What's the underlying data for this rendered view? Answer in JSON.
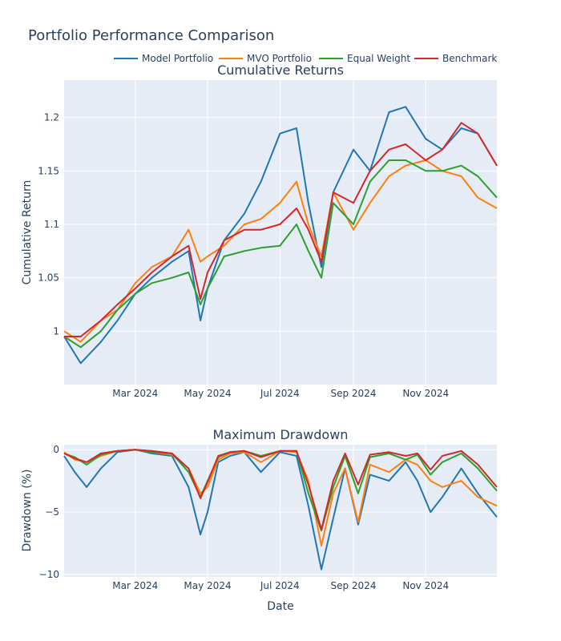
{
  "title": "Portfolio Performance Comparison",
  "chart_data": [
    {
      "type": "line",
      "title": "Cumulative Returns",
      "xlabel": "",
      "ylabel": "Cumulative Return",
      "xlim": [
        "2024-01-01",
        "2024-12-31"
      ],
      "ylim": [
        0.95,
        1.235
      ],
      "yticks": [
        1,
        1.05,
        1.1,
        1.15,
        1.2
      ],
      "ytick_labels": [
        "1",
        "1.05",
        "1.1",
        "1.15",
        "1.2"
      ],
      "xticks": [
        "2024-03-01",
        "2024-05-01",
        "2024-07-01",
        "2024-09-01",
        "2024-11-01"
      ],
      "xtick_labels": [
        "Mar 2024",
        "May 2024",
        "Jul 2024",
        "Sep 2024",
        "Nov 2024"
      ],
      "x": [
        "2024-01-01",
        "2024-01-15",
        "2024-02-01",
        "2024-02-15",
        "2024-03-01",
        "2024-03-15",
        "2024-04-01",
        "2024-04-15",
        "2024-04-25",
        "2024-05-01",
        "2024-05-15",
        "2024-06-01",
        "2024-06-15",
        "2024-07-01",
        "2024-07-15",
        "2024-07-25",
        "2024-08-05",
        "2024-08-15",
        "2024-09-01",
        "2024-09-15",
        "2024-10-01",
        "2024-10-15",
        "2024-11-01",
        "2024-11-15",
        "2024-12-01",
        "2024-12-15",
        "2024-12-31"
      ],
      "series": [
        {
          "name": "Model Portfolio",
          "color": "#1f77b4",
          "values": [
            0.995,
            0.97,
            0.99,
            1.01,
            1.035,
            1.05,
            1.065,
            1.075,
            1.01,
            1.04,
            1.085,
            1.11,
            1.14,
            1.185,
            1.19,
            1.12,
            1.06,
            1.13,
            1.17,
            1.15,
            1.205,
            1.21,
            1.18,
            1.17,
            1.19,
            1.185,
            1.155
          ]
        },
        {
          "name": "MVO Portfolio",
          "color": "#ff7f0e",
          "values": [
            1.0,
            0.99,
            1.01,
            1.02,
            1.045,
            1.06,
            1.07,
            1.095,
            1.065,
            1.07,
            1.08,
            1.1,
            1.105,
            1.12,
            1.14,
            1.1,
            1.07,
            1.13,
            1.095,
            1.12,
            1.145,
            1.155,
            1.16,
            1.15,
            1.145,
            1.125,
            1.115
          ]
        },
        {
          "name": "Equal Weight",
          "color": "#2ca02c",
          "values": [
            0.995,
            0.985,
            1.0,
            1.02,
            1.035,
            1.045,
            1.05,
            1.055,
            1.025,
            1.04,
            1.07,
            1.075,
            1.078,
            1.08,
            1.1,
            1.075,
            1.05,
            1.12,
            1.1,
            1.14,
            1.16,
            1.16,
            1.15,
            1.15,
            1.155,
            1.145,
            1.125
          ]
        },
        {
          "name": "Benchmark",
          "color": "#d62728",
          "values": [
            0.995,
            0.995,
            1.01,
            1.025,
            1.04,
            1.055,
            1.07,
            1.08,
            1.03,
            1.055,
            1.085,
            1.095,
            1.095,
            1.1,
            1.115,
            1.095,
            1.065,
            1.13,
            1.12,
            1.15,
            1.17,
            1.175,
            1.16,
            1.17,
            1.195,
            1.185,
            1.155
          ]
        }
      ]
    },
    {
      "type": "line",
      "title": "Maximum Drawdown",
      "xlabel": "Date",
      "ylabel": "Drawdown (%)",
      "xlim": [
        "2024-01-01",
        "2024-12-31"
      ],
      "ylim": [
        -10.2,
        0.4
      ],
      "yticks": [
        0,
        -5,
        -10
      ],
      "ytick_labels": [
        "0",
        "−5",
        "−10"
      ],
      "xticks": [
        "2024-03-01",
        "2024-05-01",
        "2024-07-01",
        "2024-09-01",
        "2024-11-01"
      ],
      "xtick_labels": [
        "Mar 2024",
        "May 2024",
        "Jul 2024",
        "Sep 2024",
        "Nov 2024"
      ],
      "x": [
        "2024-01-01",
        "2024-01-10",
        "2024-01-20",
        "2024-02-01",
        "2024-02-15",
        "2024-03-01",
        "2024-03-15",
        "2024-04-01",
        "2024-04-15",
        "2024-04-25",
        "2024-05-01",
        "2024-05-10",
        "2024-05-20",
        "2024-06-01",
        "2024-06-15",
        "2024-07-01",
        "2024-07-15",
        "2024-07-25",
        "2024-08-05",
        "2024-08-15",
        "2024-08-25",
        "2024-09-05",
        "2024-09-15",
        "2024-10-01",
        "2024-10-15",
        "2024-10-25",
        "2024-11-05",
        "2024-11-15",
        "2024-12-01",
        "2024-12-15",
        "2024-12-31"
      ],
      "series": [
        {
          "name": "Model Portfolio",
          "color": "#1f77b4",
          "values": [
            -0.5,
            -1.8,
            -3.0,
            -1.5,
            -0.2,
            0.0,
            -0.3,
            -0.5,
            -3.0,
            -6.8,
            -5.0,
            -1.0,
            -0.5,
            -0.2,
            -1.8,
            -0.2,
            -0.5,
            -4.5,
            -9.6,
            -5.5,
            -1.5,
            -6.0,
            -2.0,
            -2.5,
            -1.0,
            -2.5,
            -5.0,
            -3.8,
            -1.5,
            -3.5,
            -5.4
          ]
        },
        {
          "name": "MVO Portfolio",
          "color": "#ff7f0e",
          "values": [
            -0.2,
            -0.8,
            -1.0,
            -0.5,
            -0.1,
            0.0,
            -0.2,
            -0.4,
            -1.5,
            -3.5,
            -3.0,
            -0.8,
            -0.3,
            -0.2,
            -1.0,
            -0.1,
            -0.2,
            -2.5,
            -7.7,
            -3.5,
            -1.5,
            -5.8,
            -1.2,
            -1.8,
            -0.8,
            -1.2,
            -2.5,
            -3.0,
            -2.5,
            -3.8,
            -4.5
          ]
        },
        {
          "name": "Equal Weight",
          "color": "#2ca02c",
          "values": [
            -0.3,
            -0.6,
            -1.2,
            -0.4,
            -0.1,
            0.0,
            -0.2,
            -0.3,
            -1.8,
            -3.8,
            -2.5,
            -0.6,
            -0.2,
            -0.1,
            -0.5,
            -0.1,
            -0.1,
            -3.5,
            -6.5,
            -3.0,
            -0.5,
            -3.5,
            -0.6,
            -0.3,
            -0.8,
            -0.4,
            -2.0,
            -1.0,
            -0.3,
            -1.5,
            -3.3
          ]
        },
        {
          "name": "Benchmark",
          "color": "#d62728",
          "values": [
            -0.3,
            -0.7,
            -1.0,
            -0.3,
            -0.1,
            0.0,
            -0.1,
            -0.3,
            -1.5,
            -3.9,
            -2.6,
            -0.5,
            -0.2,
            -0.1,
            -0.6,
            -0.1,
            -0.1,
            -2.8,
            -6.4,
            -2.5,
            -0.3,
            -2.8,
            -0.4,
            -0.2,
            -0.5,
            -0.3,
            -1.6,
            -0.5,
            -0.1,
            -1.2,
            -3.0
          ]
        }
      ]
    }
  ]
}
